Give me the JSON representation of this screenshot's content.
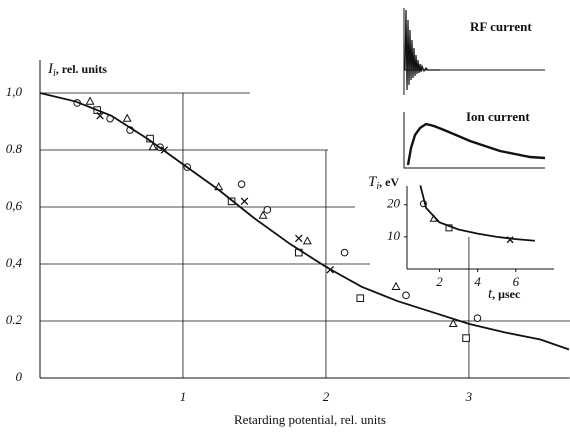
{
  "chart_data": [
    {
      "type": "scatter",
      "x_label": "Retarding potential, rel. units",
      "y_label": {
        "symbol": "I",
        "subscript": "i",
        "unit": ", rel. units"
      },
      "xlim": [
        0,
        3.7
      ],
      "ylim": [
        0,
        1.1
      ],
      "xticks": [
        1,
        2,
        3
      ],
      "yticks": [
        0,
        {
          "value": 0.2,
          "label": "0.2"
        },
        {
          "value": 0.4,
          "label": "0,4"
        },
        {
          "value": 0.6,
          "label": "0,6"
        },
        {
          "value": 0.8,
          "label": "0.8"
        },
        {
          "value": 1.0,
          "label": "1,0"
        }
      ],
      "grid": true,
      "color": "#111111",
      "series": [
        {
          "marker": "circle",
          "x": [
            0.26,
            0.49,
            0.63,
            0.84,
            1.03,
            1.41,
            1.59,
            2.13,
            2.56,
            3.06
          ],
          "values": [
            0.965,
            0.91,
            0.87,
            0.81,
            0.74,
            0.68,
            0.59,
            0.44,
            0.29,
            0.21
          ]
        },
        {
          "marker": "triangle",
          "x": [
            0.35,
            0.61,
            0.79,
            1.25,
            1.56,
            1.87,
            2.49,
            2.89
          ],
          "values": [
            0.97,
            0.91,
            0.81,
            0.67,
            0.57,
            0.48,
            0.32,
            0.19
          ]
        },
        {
          "marker": "square",
          "x": [
            0.4,
            0.77,
            1.34,
            1.81,
            2.24,
            2.98
          ],
          "values": [
            0.94,
            0.84,
            0.62,
            0.44,
            0.28,
            0.14
          ]
        },
        {
          "marker": "cross",
          "x": [
            0.42,
            0.87,
            1.43,
            1.81,
            2.03
          ],
          "values": [
            0.92,
            0.8,
            0.62,
            0.49,
            0.38
          ]
        },
        {
          "marker": "line",
          "x": [
            0,
            0.25,
            0.5,
            0.75,
            1,
            1.25,
            1.5,
            1.75,
            2,
            2.25,
            2.5,
            2.75,
            3,
            3.25,
            3.5,
            3.7
          ],
          "values": [
            1.0,
            0.97,
            0.92,
            0.84,
            0.75,
            0.66,
            0.56,
            0.47,
            0.39,
            0.32,
            0.27,
            0.23,
            0.19,
            0.16,
            0.135,
            0.1
          ]
        }
      ]
    },
    {
      "type": "scatter",
      "x_label": {
        "symbol": "t",
        "unit": ", μsec"
      },
      "y_label": {
        "symbol": "T",
        "subscript": "i",
        "unit": ", eV"
      },
      "xlim": [
        0.3,
        8
      ],
      "ylim": [
        0,
        28
      ],
      "xticks": [
        2,
        4,
        6
      ],
      "yticks": [
        10,
        20
      ],
      "grid": false,
      "color": "#111111",
      "series": [
        {
          "marker": "circle",
          "x": [
            1.16
          ],
          "values": [
            20.3
          ]
        },
        {
          "marker": "triangle",
          "x": [
            1.7
          ],
          "values": [
            15.6
          ]
        },
        {
          "marker": "square",
          "x": [
            2.5
          ],
          "values": [
            12.8
          ]
        },
        {
          "marker": "cross",
          "x": [
            5.7
          ],
          "values": [
            9.1
          ]
        },
        {
          "marker": "line",
          "x": [
            1.0,
            1.3,
            2,
            3,
            4,
            5,
            6,
            7
          ],
          "values": [
            26,
            19,
            14.5,
            12.3,
            11,
            10,
            9.3,
            8.8
          ]
        }
      ]
    }
  ],
  "insets": {
    "rf_label": "RF current",
    "ion_label": "Ion current"
  }
}
